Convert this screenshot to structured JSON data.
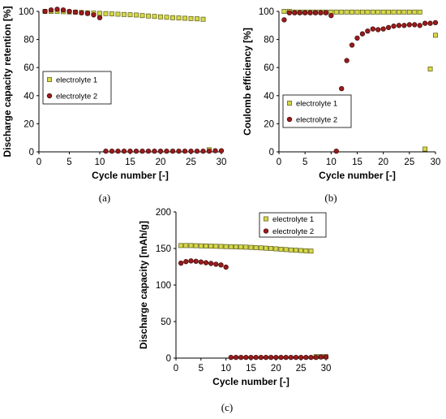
{
  "colors": {
    "electrolyte1_fill": "#d6d84a",
    "electrolyte1_stroke": "#5a5a10",
    "electrolyte2_fill": "#9b1b1b",
    "electrolyte2_stroke": "#3a0a0a"
  },
  "chart_data": [
    {
      "type": "scatter",
      "panel_label": "(a)",
      "xlabel": "Cycle number [-]",
      "ylabel": "Discharge capacity retention [%]",
      "xlim": [
        0,
        30
      ],
      "ylim": [
        0,
        100
      ],
      "xticks": [
        0,
        5,
        10,
        15,
        20,
        25,
        30
      ],
      "yticks": [
        0,
        20,
        40,
        60,
        80,
        100
      ],
      "legend_position": "middle-left",
      "series": [
        {
          "name": "electrolyte 1",
          "marker": "square",
          "x": [
            1,
            2,
            3,
            4,
            5,
            6,
            7,
            8,
            9,
            10,
            11,
            12,
            13,
            14,
            15,
            16,
            17,
            18,
            19,
            20,
            21,
            22,
            23,
            24,
            25,
            26,
            27,
            28
          ],
          "y": [
            100,
            100,
            100,
            99.8,
            99.6,
            99.4,
            99.2,
            99.0,
            98.8,
            98.6,
            98.4,
            98.2,
            98.0,
            97.8,
            97.6,
            97.4,
            97.0,
            96.7,
            96.4,
            96.1,
            95.8,
            95.5,
            95.3,
            95.1,
            94.9,
            94.7,
            94.4,
            1.5
          ]
        },
        {
          "name": "electrolyte 2",
          "marker": "circle",
          "x": [
            1,
            2,
            3,
            4,
            5,
            6,
            7,
            8,
            9,
            10,
            11,
            12,
            13,
            14,
            15,
            16,
            17,
            18,
            19,
            20,
            21,
            22,
            23,
            24,
            25,
            26,
            27,
            28,
            29,
            30
          ],
          "y": [
            100,
            101,
            101.5,
            101,
            100,
            99.5,
            99,
            98.5,
            97.5,
            95.5,
            0.5,
            0.5,
            0.5,
            0.5,
            0.5,
            0.5,
            0.5,
            0.5,
            0.5,
            0.5,
            0.5,
            0.5,
            0.5,
            0.5,
            0.5,
            0.5,
            0.5,
            0.5,
            0.8,
            0.8
          ]
        }
      ]
    },
    {
      "type": "scatter",
      "panel_label": "(b)",
      "xlabel": "Cycle number [-]",
      "ylabel": "Coulomb efficiency [%]",
      "xlim": [
        0,
        30
      ],
      "ylim": [
        0,
        100
      ],
      "xticks": [
        0,
        5,
        10,
        15,
        20,
        25,
        30
      ],
      "yticks": [
        0,
        20,
        40,
        60,
        80,
        100
      ],
      "legend_position": "lower-right",
      "series": [
        {
          "name": "electrolyte 1",
          "marker": "square",
          "x": [
            1,
            2,
            3,
            4,
            5,
            6,
            7,
            8,
            9,
            10,
            11,
            12,
            13,
            14,
            15,
            16,
            17,
            18,
            19,
            20,
            21,
            22,
            23,
            24,
            25,
            26,
            27,
            28,
            29,
            30
          ],
          "y": [
            100,
            100,
            99.5,
            99.5,
            99.5,
            99.5,
            99.5,
            99.5,
            99.5,
            99.5,
            99.5,
            99.5,
            99.5,
            99.5,
            99.5,
            99.5,
            99.5,
            99.5,
            99.5,
            99.5,
            99.5,
            99.5,
            99.5,
            99.5,
            99.5,
            99.5,
            99.5,
            2,
            59,
            83
          ]
        },
        {
          "name": "electrolyte 2",
          "marker": "circle",
          "x": [
            1,
            2,
            3,
            4,
            5,
            6,
            7,
            8,
            9,
            10,
            11,
            12,
            13,
            14,
            15,
            16,
            17,
            18,
            19,
            20,
            21,
            22,
            23,
            24,
            25,
            26,
            27,
            28,
            29,
            30
          ],
          "y": [
            94,
            99,
            99,
            99,
            99,
            99,
            99,
            99,
            99,
            97,
            0.5,
            45,
            65,
            76,
            81,
            84,
            86,
            87.5,
            87,
            87.5,
            88.5,
            89.5,
            90,
            90,
            90.5,
            90.5,
            90,
            91.5,
            91.5,
            92
          ]
        }
      ]
    },
    {
      "type": "scatter",
      "panel_label": "(c)",
      "xlabel": "Cycle number [-]",
      "ylabel": "Discharge capacity [mAh/g]",
      "xlim": [
        0,
        30
      ],
      "ylim": [
        0,
        200
      ],
      "xticks": [
        0,
        5,
        10,
        15,
        20,
        25,
        30
      ],
      "yticks": [
        0,
        50,
        100,
        150,
        200
      ],
      "legend_position": "top-right",
      "series": [
        {
          "name": "electrolyte 1",
          "marker": "square",
          "x": [
            1,
            2,
            3,
            4,
            5,
            6,
            7,
            8,
            9,
            10,
            11,
            12,
            13,
            14,
            15,
            16,
            17,
            18,
            19,
            20,
            21,
            22,
            23,
            24,
            25,
            26,
            27,
            28,
            29,
            30
          ],
          "y": [
            154,
            154,
            154,
            153.8,
            153.6,
            153.4,
            153.2,
            153,
            152.8,
            152.6,
            152.4,
            152.2,
            152,
            151.8,
            151.5,
            151.2,
            150.8,
            150.4,
            150,
            149.5,
            149,
            148.5,
            148,
            147.6,
            147.2,
            146.8,
            146.4,
            2,
            2,
            2
          ]
        },
        {
          "name": "electrolyte 2",
          "marker": "circle",
          "x": [
            1,
            2,
            3,
            4,
            5,
            6,
            7,
            8,
            9,
            10,
            11,
            12,
            13,
            14,
            15,
            16,
            17,
            18,
            19,
            20,
            21,
            22,
            23,
            24,
            25,
            26,
            27,
            28,
            29,
            30
          ],
          "y": [
            130,
            132,
            133,
            132.5,
            131.5,
            130.5,
            129.5,
            128.5,
            127.5,
            124.5,
            1,
            1,
            1,
            1,
            1,
            1,
            1,
            1,
            1,
            1,
            1,
            1,
            1,
            1,
            1,
            1,
            1,
            1,
            1.5,
            1.5
          ]
        }
      ]
    }
  ]
}
